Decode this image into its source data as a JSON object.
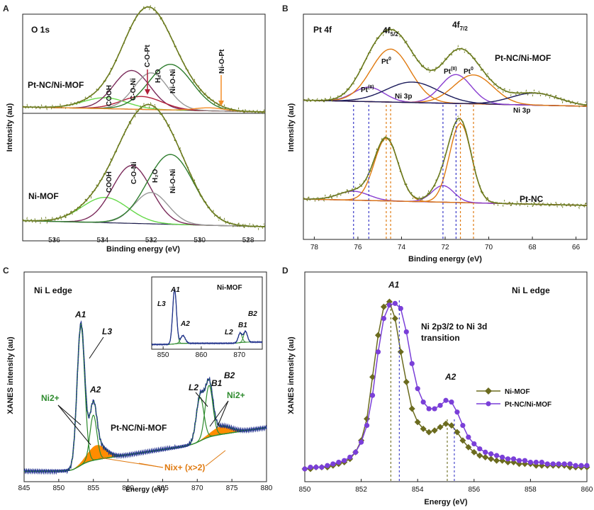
{
  "colors": {
    "envelope": "#6b7a1e",
    "cooh": "#66d94a",
    "coni": "#7a2a5a",
    "h2o": "#999999",
    "nioni": "#2e7d2e",
    "niopt": "#f28c28",
    "copt": "#b0203a",
    "ptii": "#8a3fd1",
    "pt0": "#e07a10",
    "ni3p": "#1a1a5a",
    "nimof": "#6b6b1e",
    "ptncnimof": "#7a3fd8",
    "spectrum": "#1f2f8c",
    "fitgreen": "#2e8b2e",
    "bg": "#ff8c00"
  },
  "panels": {
    "A": {
      "letter": "A",
      "title": "O 1s",
      "ylabel": "Intensity (au)",
      "xlabel": "Binding energy (eV)",
      "xticks": [
        "536",
        "534",
        "532",
        "530",
        "528"
      ],
      "top_label": "Pt-NC/Ni-MOF",
      "bottom_label": "Ni-MOF",
      "peaks_top": [
        "COOH",
        "C-O-Ni",
        "C-O-Pt",
        "H₂O",
        "Ni-O-Ni",
        "Ni-O-Pt"
      ],
      "peaks_bottom": [
        "COOH",
        "C-O-Ni",
        "H₂O",
        "Ni-O-Ni"
      ]
    },
    "B": {
      "letter": "B",
      "title": "Pt 4f",
      "ylabel": "Intensity (au)",
      "xlabel": "Binding energy (eV)",
      "xticks": [
        "78",
        "76",
        "74",
        "72",
        "70",
        "68",
        "66"
      ],
      "peak_52": "4f",
      "sub_52": "5/2",
      "peak_72": "4f",
      "sub_72": "7/2",
      "top_label": "Pt-NC/Ni-MOF",
      "bottom_label": "Pt-NC",
      "pt_ii": "Pt",
      "sup_ii": "(II)",
      "pt_0": "Pt",
      "sup_0": "0",
      "ni3p": "Ni 3p"
    },
    "C": {
      "letter": "C",
      "title": "Ni L edge",
      "ylabel": "XANES intensity (au)",
      "xlabel": "Energy (eV)",
      "xticks": [
        "845",
        "850",
        "855",
        "860",
        "865",
        "870",
        "875",
        "880"
      ],
      "sample_label": "Pt-NC/Ni-MOF",
      "ni2": "Ni2+",
      "nix": "Nix+ (x>2)",
      "A1": "A1",
      "A2": "A2",
      "L3": "L3",
      "L2": "L2",
      "B1": "B1",
      "B2": "B2",
      "inset": {
        "title": "Ni-MOF",
        "xticks": [
          "850",
          "860",
          "870"
        ],
        "A1": "A1",
        "A2": "A2",
        "L3": "L3",
        "L2": "L2",
        "B1": "B1",
        "B2": "B2"
      }
    },
    "D": {
      "letter": "D",
      "title": "Ni L edge",
      "ylabel": "XANES intensity (au)",
      "xlabel": "Energy (eV)",
      "xticks": [
        "850",
        "852",
        "854",
        "856",
        "858",
        "860"
      ],
      "annotation_line1": "Ni 2p3/2 to Ni 3d",
      "annotation_line2": "transition",
      "A1": "A1",
      "A2": "A2",
      "legend": [
        "Ni-MOF",
        "Pt-NC/Ni-MOF"
      ]
    }
  },
  "chart_data": [
    {
      "type": "line",
      "panel": "A",
      "title": "O 1s",
      "xlabel": "Binding energy (eV)",
      "ylabel": "Intensity (au)",
      "xlim": [
        537.3,
        527.3
      ],
      "spectra": [
        {
          "sample": "Pt-NC/Ni-MOF",
          "baseline": 0.62,
          "peaks": [
            {
              "name": "COOH",
              "center": 533.9,
              "height": 0.11,
              "width": 0.9
            },
            {
              "name": "C-O-Ni",
              "center": 532.8,
              "height": 0.39,
              "width": 0.75
            },
            {
              "name": "C-O-Pt",
              "center": 532.4,
              "height": 0.13,
              "width": 0.85
            },
            {
              "name": "H₂O",
              "center": 532.0,
              "height": 0.37,
              "width": 0.7
            },
            {
              "name": "Ni-O-Ni",
              "center": 531.2,
              "height": 0.46,
              "width": 0.9
            },
            {
              "name": "Ni-O-Pt",
              "center": 529.6,
              "height": 0.03,
              "width": 0.6
            }
          ]
        },
        {
          "sample": "Ni-MOF",
          "baseline": 0.0,
          "peaks": [
            {
              "name": "COOH",
              "center": 533.9,
              "height": 0.21,
              "width": 0.95
            },
            {
              "name": "C-O-Ni",
              "center": 532.8,
              "height": 0.48,
              "width": 0.8
            },
            {
              "name": "H₂O",
              "center": 532.0,
              "height": 0.26,
              "width": 0.7
            },
            {
              "name": "Ni-O-Ni",
              "center": 531.2,
              "height": 0.58,
              "width": 0.95
            }
          ]
        }
      ]
    },
    {
      "type": "line",
      "panel": "B",
      "title": "Pt 4f",
      "xlabel": "Binding energy (eV)",
      "ylabel": "Intensity (au)",
      "xlim": [
        78.5,
        65.5
      ],
      "spectra": [
        {
          "sample": "Pt-NC/Ni-MOF",
          "baseline": 0.55,
          "peaks": [
            {
              "name": "Pt(II)",
              "center": 75.5,
              "height": 0.12,
              "width": 0.7
            },
            {
              "name": "Pt0",
              "center": 74.5,
              "height": 0.44,
              "width": 0.9
            },
            {
              "name": "Ni 3p",
              "center": 73.5,
              "height": 0.17,
              "width": 1.2
            },
            {
              "name": "Pt(II)",
              "center": 71.5,
              "height": 0.24,
              "width": 0.7
            },
            {
              "name": "Pt0",
              "center": 70.7,
              "height": 0.24,
              "width": 0.9
            },
            {
              "name": "Ni 3p",
              "center": 67.9,
              "height": 0.1,
              "width": 1.1
            }
          ]
        },
        {
          "sample": "Pt-NC",
          "baseline": 0.0,
          "peaks": [
            {
              "name": "Pt(II)",
              "center": 76.2,
              "height": 0.07,
              "width": 0.7
            },
            {
              "name": "Pt0",
              "center": 74.7,
              "height": 0.49,
              "width": 0.55
            },
            {
              "name": "Pt(II)",
              "center": 72.1,
              "height": 0.13,
              "width": 0.5
            },
            {
              "name": "Pt0",
              "center": 71.3,
              "height": 0.62,
              "width": 0.5
            }
          ]
        }
      ]
    },
    {
      "type": "line",
      "panel": "C",
      "title": "Ni L edge",
      "xlabel": "Energy (eV)",
      "ylabel": "XANES intensity (au)",
      "xlim": [
        845,
        880
      ],
      "peaks": [
        {
          "name": "A1",
          "energy": 853.2,
          "height": 1.0
        },
        {
          "name": "A2",
          "energy": 855.0,
          "height": 0.43
        },
        {
          "name": "B1",
          "energy": 870.4,
          "height": 0.4
        },
        {
          "name": "B2",
          "energy": 871.7,
          "height": 0.46
        }
      ],
      "inset": {
        "sample": "Ni-MOF",
        "xlim": [
          847,
          876
        ],
        "peaks": [
          {
            "name": "A1",
            "energy": 853.0,
            "height": 1.0
          },
          {
            "name": "A2",
            "energy": 855.2,
            "height": 0.15
          },
          {
            "name": "B1",
            "energy": 870.2,
            "height": 0.18
          },
          {
            "name": "B2",
            "energy": 871.6,
            "height": 0.2
          }
        ]
      }
    },
    {
      "type": "line",
      "panel": "D",
      "title": "Ni L edge",
      "xlabel": "Energy (eV)",
      "ylabel": "XANES intensity (au)",
      "xlim": [
        850,
        860
      ],
      "series": [
        {
          "name": "Ni-MOF",
          "marker": "diamond",
          "x": [
            850.0,
            850.2,
            850.4,
            850.6,
            850.8,
            851.0,
            851.2,
            851.4,
            851.6,
            851.8,
            852.0,
            852.2,
            852.4,
            852.6,
            852.8,
            853.0,
            853.2,
            853.4,
            853.6,
            853.8,
            854.0,
            854.2,
            854.4,
            854.6,
            854.8,
            855.0,
            855.2,
            855.4,
            855.6,
            855.8,
            856.0,
            856.2,
            856.4,
            856.6,
            856.8,
            857.0,
            857.2,
            857.4,
            857.6,
            857.8,
            858.0,
            858.2,
            858.4,
            858.6,
            858.8,
            859.0,
            859.2,
            859.4,
            859.6,
            859.8,
            860.0
          ],
          "y": [
            0.0,
            0.0,
            0.01,
            0.01,
            0.01,
            0.02,
            0.03,
            0.04,
            0.06,
            0.1,
            0.17,
            0.3,
            0.55,
            0.8,
            0.97,
            1.0,
            0.9,
            0.7,
            0.52,
            0.36,
            0.28,
            0.24,
            0.22,
            0.23,
            0.25,
            0.27,
            0.26,
            0.22,
            0.17,
            0.13,
            0.1,
            0.08,
            0.07,
            0.06,
            0.05,
            0.05,
            0.04,
            0.04,
            0.03,
            0.03,
            0.03,
            0.02,
            0.02,
            0.02,
            0.02,
            0.02,
            0.02,
            0.01,
            0.01,
            0.01,
            0.01
          ]
        },
        {
          "name": "Pt-NC/Ni-MOF",
          "marker": "circle",
          "x": [
            850.0,
            850.2,
            850.4,
            850.6,
            850.8,
            851.0,
            851.2,
            851.4,
            851.6,
            851.8,
            852.0,
            852.2,
            852.4,
            852.6,
            852.8,
            853.0,
            853.2,
            853.4,
            853.6,
            853.8,
            854.0,
            854.2,
            854.4,
            854.6,
            854.8,
            855.0,
            855.2,
            855.4,
            855.6,
            855.8,
            856.0,
            856.2,
            856.4,
            856.6,
            856.8,
            857.0,
            857.2,
            857.4,
            857.6,
            857.8,
            858.0,
            858.2,
            858.4,
            858.6,
            858.8,
            859.0,
            859.2,
            859.4,
            859.6,
            859.8,
            860.0
          ],
          "y": [
            0.0,
            0.01,
            0.01,
            0.01,
            0.02,
            0.03,
            0.04,
            0.05,
            0.07,
            0.1,
            0.16,
            0.26,
            0.44,
            0.7,
            0.9,
            0.98,
            0.99,
            0.96,
            0.82,
            0.63,
            0.48,
            0.4,
            0.36,
            0.36,
            0.38,
            0.41,
            0.4,
            0.34,
            0.26,
            0.19,
            0.15,
            0.12,
            0.1,
            0.09,
            0.08,
            0.07,
            0.06,
            0.06,
            0.05,
            0.05,
            0.04,
            0.04,
            0.04,
            0.03,
            0.03,
            0.03,
            0.03,
            0.03,
            0.02,
            0.02,
            0.02
          ]
        }
      ]
    }
  ]
}
